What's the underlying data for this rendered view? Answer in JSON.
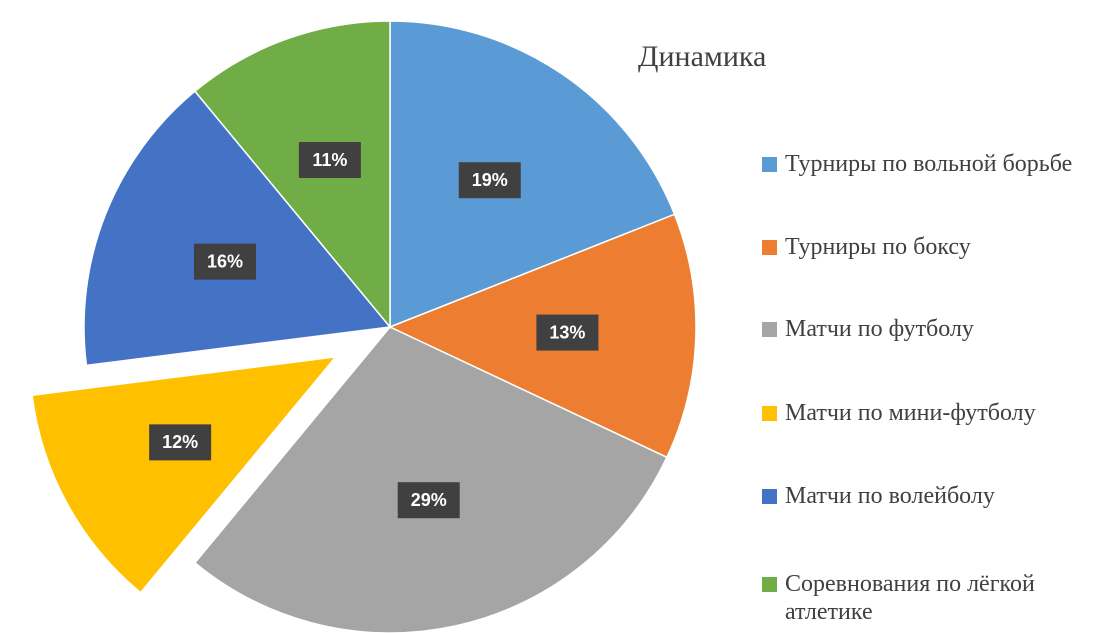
{
  "chart_data": {
    "type": "pie",
    "title": "Динамика",
    "categories": [
      "Турниры по вольной борьбе",
      "Турниры по боксу",
      "Матчи по футболу",
      "Матчи по мини-футболу",
      "Матчи по волейболу",
      "Соревнования по лёгкой атлетике"
    ],
    "values": [
      19,
      13,
      29,
      12,
      16,
      11
    ],
    "value_labels": [
      "19%",
      "13%",
      "29%",
      "12%",
      "16%",
      "11%"
    ],
    "colors": [
      "#5b9bd5",
      "#ed7d31",
      "#a5a5a5",
      "#ffc000",
      "#4472c4",
      "#70ad47"
    ],
    "exploded": [
      false,
      false,
      false,
      true,
      false,
      false
    ],
    "legend": "right"
  }
}
